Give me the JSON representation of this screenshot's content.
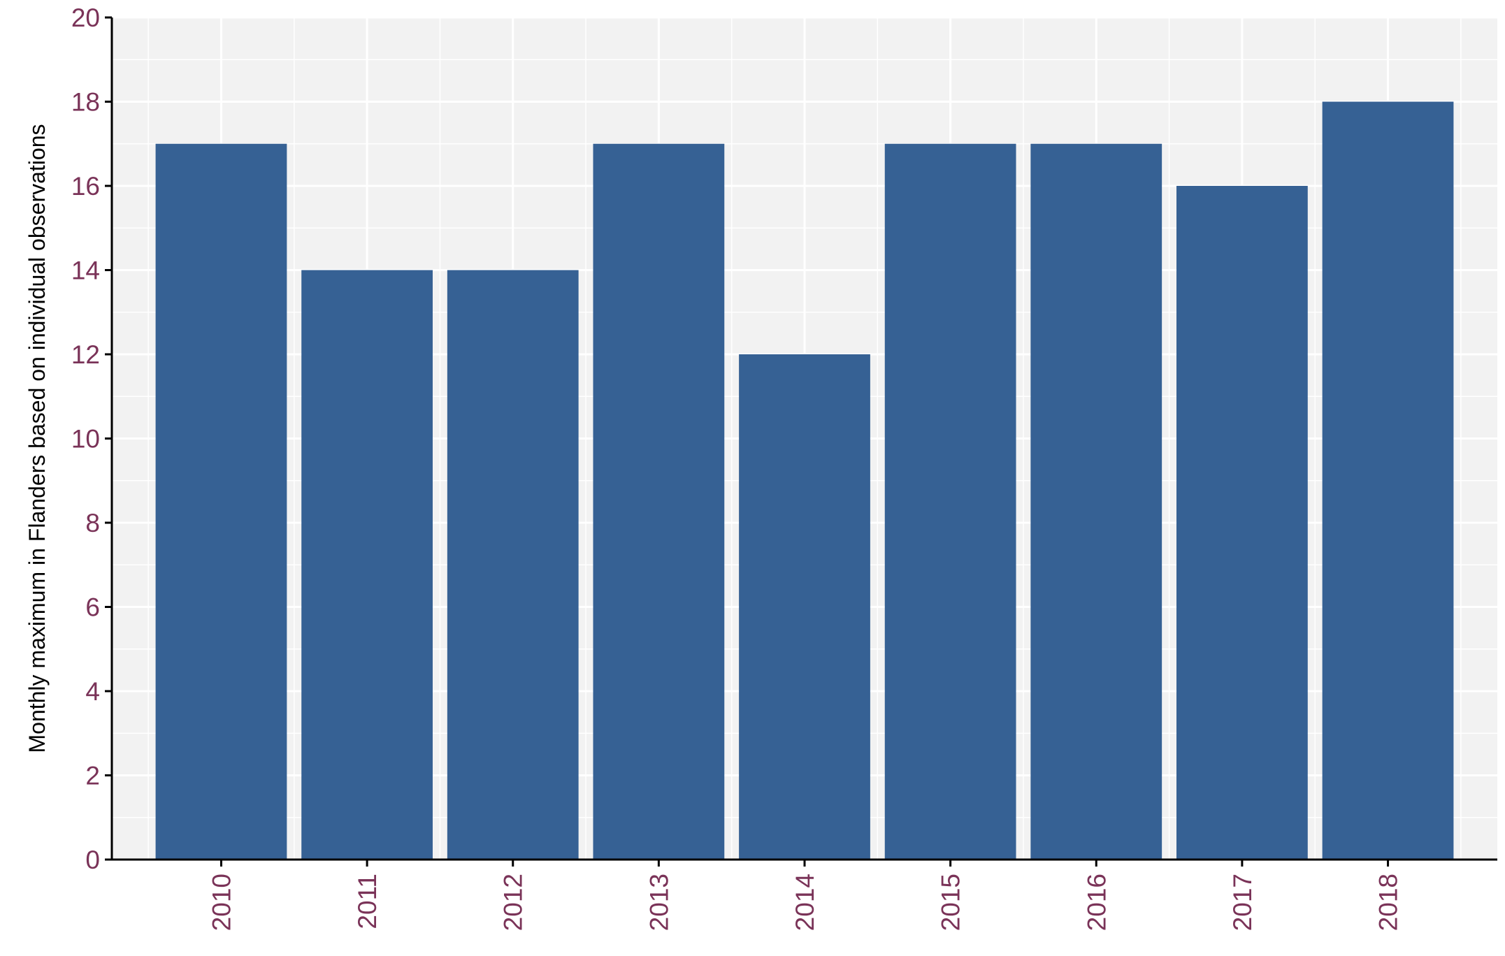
{
  "chart_data": {
    "type": "bar",
    "title": "",
    "xlabel": "",
    "ylabel": "Monthly maximum in Flanders based on individual observations",
    "categories": [
      "2010",
      "2011",
      "2012",
      "2013",
      "2014",
      "2015",
      "2016",
      "2017",
      "2018"
    ],
    "values": [
      17,
      14,
      14,
      17,
      12,
      17,
      17,
      16,
      18
    ],
    "ylim": [
      0,
      20
    ],
    "yticks": [
      "0",
      "2",
      "4",
      "6",
      "8",
      "10",
      "12",
      "14",
      "16",
      "18",
      "20"
    ],
    "grid": true,
    "legend": "none",
    "colors": {
      "bar": "#366194",
      "panel": "#f2f2f2",
      "grid": "#ffffff",
      "tick_text": "#7a3358",
      "axis": "#000000"
    }
  }
}
